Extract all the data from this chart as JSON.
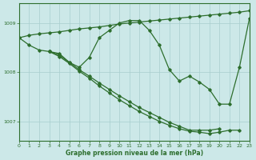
{
  "xlabel": "Graphe pression niveau de la mer (hPa)",
  "background_color": "#cce8e8",
  "line_color": "#2d6e2d",
  "grid_color": "#a8cece",
  "xlim": [
    0,
    23
  ],
  "ylim": [
    1006.6,
    1009.4
  ],
  "yticks": [
    1007,
    1008,
    1009
  ],
  "xticks": [
    0,
    1,
    2,
    3,
    4,
    5,
    6,
    7,
    8,
    9,
    10,
    11,
    12,
    13,
    14,
    15,
    16,
    17,
    18,
    19,
    20,
    21,
    22,
    23
  ],
  "series": [
    {
      "x": [
        0,
        1,
        2,
        3,
        4,
        5,
        6,
        7,
        8,
        9,
        10,
        11,
        12,
        13,
        14,
        15,
        16,
        17,
        18,
        19,
        20,
        21,
        22,
        23
      ],
      "y": [
        1008.7,
        1008.75,
        1008.78,
        1008.8,
        1008.82,
        1008.85,
        1008.88,
        1008.9,
        1008.92,
        1008.95,
        1008.98,
        1009.0,
        1009.02,
        1009.04,
        1009.06,
        1009.08,
        1009.1,
        1009.12,
        1009.14,
        1009.16,
        1009.18,
        1009.2,
        1009.22,
        1009.25
      ]
    },
    {
      "x": [
        0,
        1,
        2,
        3,
        4,
        5,
        6,
        7,
        8,
        9,
        10,
        11,
        12,
        13,
        14,
        15,
        16,
        17,
        18,
        19,
        20,
        21,
        22,
        23
      ],
      "y": [
        1008.7,
        1008.55,
        1008.45,
        1008.42,
        1008.38,
        1008.2,
        1008.1,
        1008.3,
        1008.7,
        1008.85,
        1009.0,
        1009.05,
        1009.05,
        1008.85,
        1008.55,
        1008.05,
        1007.82,
        1007.92,
        1007.8,
        1007.65,
        1007.35,
        1007.35,
        1008.1,
        1009.1
      ]
    },
    {
      "x": [
        3,
        4,
        5,
        6,
        7,
        8,
        9,
        10,
        11,
        12,
        13,
        14,
        15,
        16,
        17,
        18,
        19,
        20
      ],
      "y": [
        1008.42,
        1008.35,
        1008.2,
        1008.05,
        1007.92,
        1007.78,
        1007.65,
        1007.52,
        1007.4,
        1007.28,
        1007.18,
        1007.08,
        1006.98,
        1006.9,
        1006.82,
        1006.82,
        1006.82,
        1006.85
      ]
    },
    {
      "x": [
        3,
        4,
        5,
        6,
        7,
        8,
        9,
        10,
        11,
        12,
        13,
        14,
        15,
        16,
        17,
        18,
        19,
        20,
        21,
        22
      ],
      "y": [
        1008.42,
        1008.32,
        1008.18,
        1008.02,
        1007.88,
        1007.72,
        1007.58,
        1007.44,
        1007.32,
        1007.2,
        1007.1,
        1007.0,
        1006.92,
        1006.85,
        1006.8,
        1006.78,
        1006.75,
        1006.78,
        1006.82,
        1006.82
      ]
    }
  ]
}
